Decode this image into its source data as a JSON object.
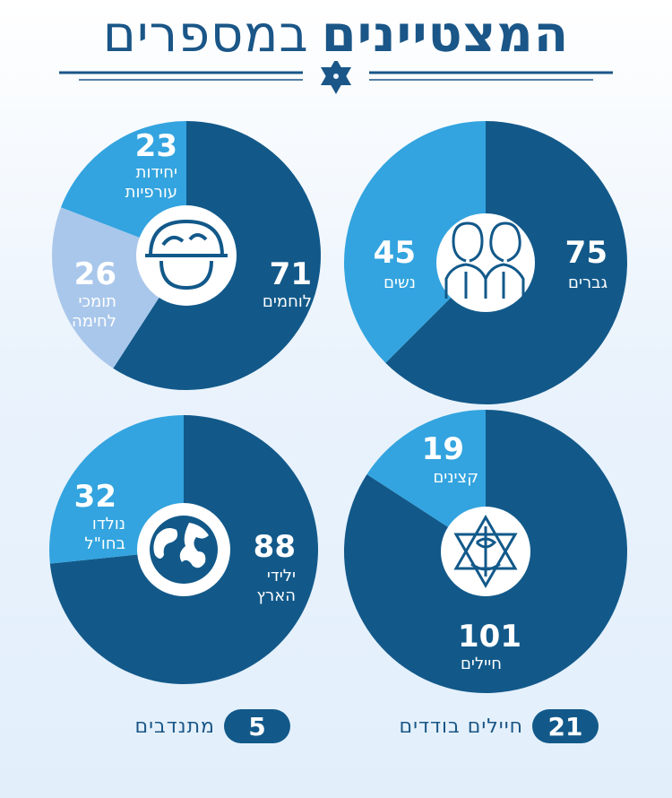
{
  "title": {
    "bold": "המצטיינים",
    "light": "במספרים"
  },
  "colors": {
    "dark": "#12598a",
    "medium": "#33a4df",
    "light": "#a9c7eb",
    "text": "#1a5687"
  },
  "chart_data": [
    {
      "type": "pie",
      "icon": "soldiers-icon",
      "slices": [
        {
          "value": 75,
          "label": "גברים",
          "color": "#12598a"
        },
        {
          "value": 45,
          "label": "נשים",
          "color": "#33a4df"
        }
      ]
    },
    {
      "type": "pie",
      "icon": "helmet-icon",
      "slices": [
        {
          "value": 71,
          "label": "לוחמים",
          "color": "#12598a"
        },
        {
          "value": 26,
          "label": "תומכי\nלחימה",
          "color": "#a9c7eb"
        },
        {
          "value": 23,
          "label": "יחידות\nעורפיות",
          "color": "#33a4df"
        }
      ]
    },
    {
      "type": "pie",
      "icon": "idf-emblem-icon",
      "slices": [
        {
          "value": 101,
          "label": "חיילים",
          "color": "#12598a"
        },
        {
          "value": 19,
          "label": "קצינים",
          "color": "#33a4df"
        }
      ]
    },
    {
      "type": "pie",
      "icon": "globe-icon",
      "slices": [
        {
          "value": 88,
          "label": "ילידי\nהארץ",
          "color": "#12598a"
        },
        {
          "value": 32,
          "label": "נולדו\nבחו\"ל",
          "color": "#33a4df"
        }
      ]
    }
  ],
  "footer": {
    "lone_soldiers": {
      "value": "21",
      "label": "חיילים בודדים"
    },
    "volunteers": {
      "value": "5",
      "label": "מתנדבים"
    }
  }
}
